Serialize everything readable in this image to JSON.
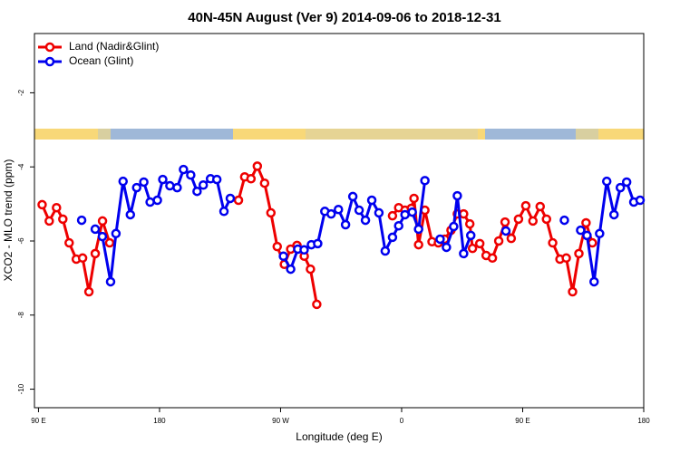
{
  "chart_data": {
    "type": "line",
    "title": "40N-45N August (Ver 9)   2014-09-06 to 2018-12-31",
    "xlabel": "Longitude (deg E)",
    "ylabel": "XCO2 - MLO trend (ppm)",
    "xlim": [
      87,
      540
    ],
    "ylim": [
      -10.5,
      -0.4
    ],
    "xticks": [
      {
        "value": 90,
        "label": "90 E"
      },
      {
        "value": 180,
        "label": "180"
      },
      {
        "value": 270,
        "label": "90 W"
      },
      {
        "value": 360,
        "label": "0"
      },
      {
        "value": 450,
        "label": "90 E"
      },
      {
        "value": 540,
        "label": "180"
      }
    ],
    "yticks": [
      -10,
      -8,
      -6,
      -4,
      -2
    ],
    "legend": "top-left",
    "series": [
      {
        "name": "Land (Nadir&Glint)",
        "color": "#ee0000",
        "x": [
          92.7,
          98.0,
          103.4,
          108.1,
          112.8,
          118.1,
          122.8,
          127.5,
          132.2,
          137.6,
          142.9,
          null,
          238.7,
          243.3,
          248.0,
          252.7,
          258.1,
          262.8,
          267.5,
          272.8,
          277.5,
          282.2,
          287.6,
          292.2,
          296.9,
          null,
          353.2,
          357.8,
          362.5,
          367.2,
          369.2,
          372.6,
          377.3,
          382.6,
          387.3,
          392.0,
          396.7,
          401.4,
          406.1,
          410.7,
          412.7,
          418.1,
          422.8,
          427.5,
          432.2,
          436.9,
          441.5,
          446.9,
          452.3,
          457.6,
          463.0,
          467.7,
          472.3,
          477.7,
          482.4,
          487.1,
          491.8,
          497.1,
          501.8
        ],
        "values": [
          -5.02,
          -5.46,
          -5.1,
          -5.41,
          -6.05,
          -6.49,
          -6.46,
          -7.37,
          -6.34,
          -5.46,
          -6.05,
          null,
          -4.9,
          -4.27,
          -4.32,
          -3.98,
          -4.44,
          -5.24,
          -6.15,
          -6.63,
          -6.22,
          -6.12,
          -6.41,
          -6.76,
          -7.71,
          null,
          -5.32,
          -5.1,
          -5.17,
          -5.12,
          -4.85,
          -6.1,
          -5.17,
          -6.02,
          -6.05,
          -5.95,
          -5.71,
          -5.27,
          -5.27,
          -5.54,
          -6.2,
          -6.07,
          -6.39,
          -6.46,
          -6.0,
          -5.49,
          -5.93,
          -5.41,
          -5.05,
          -5.46,
          -5.07,
          -5.41,
          -6.05,
          -6.49,
          -6.46,
          -7.37,
          -6.34,
          -5.51,
          -6.05
        ]
      },
      {
        "name": "Ocean (Glint)",
        "color": "#0000ee",
        "x": [
          122.1,
          null,
          132.2,
          137.5,
          143.6,
          147.6,
          152.9,
          158.3,
          163.0,
          168.3,
          173.0,
          178.4,
          182.4,
          187.7,
          193.1,
          197.8,
          203.2,
          207.9,
          212.5,
          217.9,
          222.6,
          227.9,
          232.6,
          null,
          272.1,
          277.5,
          282.8,
          287.5,
          292.9,
          297.6,
          302.9,
          307.6,
          313.0,
          318.3,
          323.7,
          328.4,
          333.1,
          337.8,
          343.1,
          347.8,
          353.2,
          357.8,
          362.5,
          367.9,
          372.6,
          377.3,
          null,
          388.6,
          393.3,
          398.7,
          401.4,
          406.1,
          411.4,
          null,
          437.5,
          null,
          481.0,
          null,
          493.1,
          497.8,
          503.1,
          507.2,
          512.5,
          517.9,
          522.6,
          527.3,
          532.6,
          537.3
        ],
        "values": [
          -5.44,
          null,
          -5.68,
          -5.88,
          -7.1,
          -5.8,
          -4.39,
          -5.29,
          -4.56,
          -4.41,
          -4.95,
          -4.9,
          -4.34,
          -4.51,
          -4.56,
          -4.07,
          -4.22,
          -4.66,
          -4.49,
          -4.32,
          -4.34,
          -5.2,
          -4.85,
          null,
          -6.41,
          -6.76,
          -6.22,
          -6.24,
          -6.1,
          -6.07,
          -5.2,
          -5.27,
          -5.15,
          -5.56,
          -4.8,
          -5.17,
          -5.44,
          -4.9,
          -5.24,
          -6.27,
          -5.9,
          -5.59,
          -5.29,
          -5.22,
          -5.68,
          -4.37,
          null,
          -5.95,
          -6.17,
          -5.61,
          -4.78,
          -6.34,
          -5.85,
          null,
          -5.73,
          null,
          -5.44,
          null,
          -5.71,
          -5.85,
          -7.1,
          -5.8,
          -4.39,
          -5.29,
          -4.56,
          -4.41,
          -4.95,
          -4.9
        ]
      }
    ]
  }
}
